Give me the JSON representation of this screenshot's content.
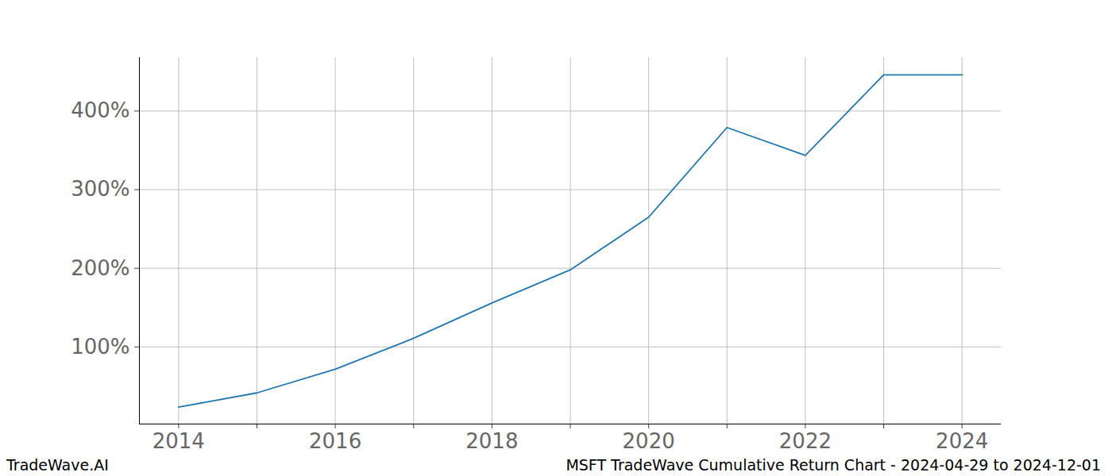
{
  "chart_data": {
    "type": "line",
    "title": "MSFT TradeWave Cumulative Return Chart - 2024-04-29 to 2024-12-01",
    "source": "TradeWave.AI",
    "x": [
      2014,
      2015,
      2016,
      2017,
      2018,
      2019,
      2020,
      2021,
      2022,
      2023,
      2024
    ],
    "values": [
      23.5,
      41.6,
      71.8,
      111,
      156,
      198,
      265,
      379,
      343.5,
      446,
      446
    ],
    "color": "#1f77b4",
    "xlim": [
      2013.5,
      2024.5
    ],
    "xticks": [
      2014,
      2016,
      2018,
      2020,
      2022,
      2024
    ],
    "x_minor_ticks": [
      2015,
      2017,
      2019,
      2021,
      2023
    ],
    "ylim": [
      2,
      468
    ],
    "yticks": [
      {
        "value": 100,
        "label": "100%"
      },
      {
        "value": 200,
        "label": "200%"
      },
      {
        "value": 300,
        "label": "300%"
      },
      {
        "value": 400,
        "label": "400%"
      }
    ],
    "grid": true
  }
}
